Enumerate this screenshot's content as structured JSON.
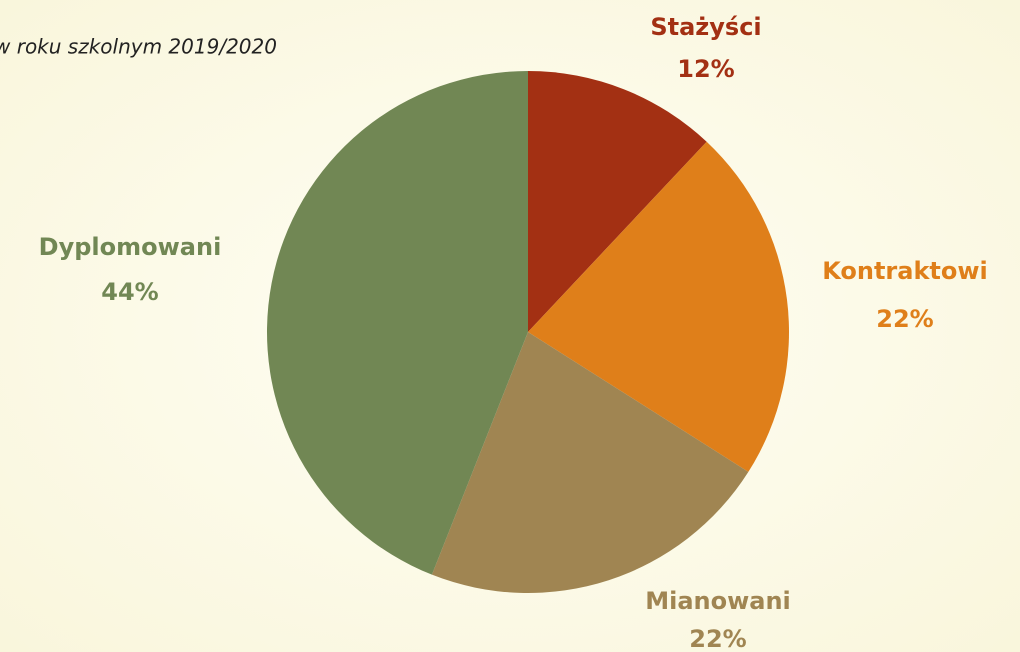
{
  "chart_data": {
    "type": "pie",
    "subtitle": "w roku szkolnym 2019/2020",
    "categories": [
      "Stażyści",
      "Kontraktowi",
      "Mianowani",
      "Dyplomowani"
    ],
    "values": [
      12,
      22,
      22,
      44
    ],
    "value_labels": [
      "12%",
      "22%",
      "22%",
      "44%"
    ],
    "colors": [
      "#a33013",
      "#df7f1a",
      "#a08552",
      "#718754"
    ],
    "start_angle": 0,
    "direction": "clockwise"
  }
}
